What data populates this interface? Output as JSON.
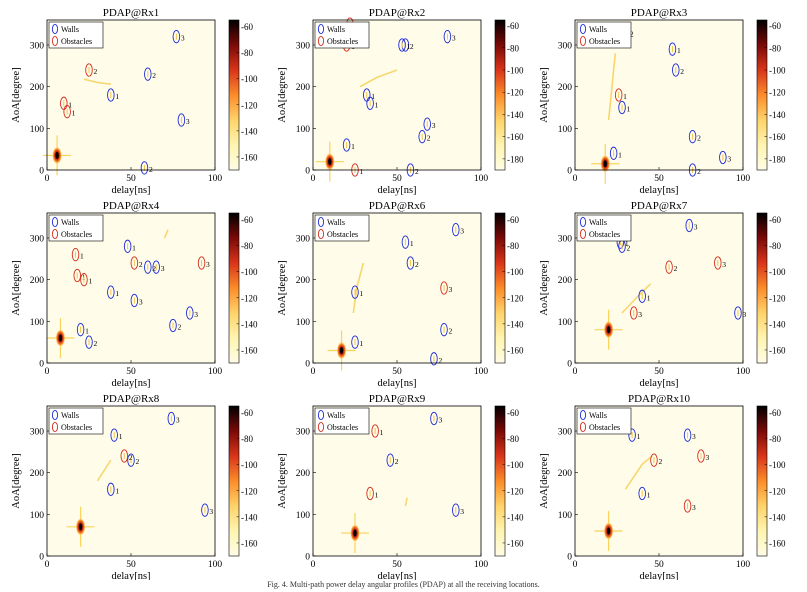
{
  "figure": {
    "caption": "Fig. 4. Multi-path power delay angular profiles (PDAP) at all the receiving locations."
  },
  "colors": {
    "walls": "#1e2bd8",
    "obstacles": "#d42c1a",
    "colormap": [
      "#fffce6",
      "#fff4b0",
      "#ffd36a",
      "#fb8c2a",
      "#d8351a",
      "#7a0a08",
      "#000000"
    ]
  },
  "chart_data": [
    {
      "type": "heatmap",
      "title": "PDAP@Rx1",
      "xlabel": "delay[ns]",
      "ylabel": "AoA[degree]",
      "xlim": [
        0,
        100
      ],
      "ylim": [
        0,
        360
      ],
      "xticks": [
        0,
        50,
        100
      ],
      "yticks": [
        0,
        100,
        200,
        300
      ],
      "colorbar": {
        "ticks": [
          -60,
          -80,
          -100,
          -120,
          -140,
          -160
        ],
        "range": [
          -170,
          -55
        ]
      },
      "legend": [
        "Walls",
        "Obstacles"
      ],
      "peaks": [
        {
          "delay": 6,
          "aoa": 35
        }
      ],
      "traces": [
        {
          "points": [
            [
              22,
              218
            ],
            [
              30,
              210
            ],
            [
              38,
              206
            ]
          ]
        }
      ],
      "walls": [
        {
          "delay": 38,
          "aoa": 180,
          "label": "1"
        },
        {
          "delay": 60,
          "aoa": 230,
          "label": "2"
        },
        {
          "delay": 77,
          "aoa": 320,
          "label": "3"
        },
        {
          "delay": 80,
          "aoa": 120,
          "label": "3"
        },
        {
          "delay": 58,
          "aoa": 5,
          "label": "2"
        }
      ],
      "obstacles": [
        {
          "delay": 10,
          "aoa": 160,
          "label": "1"
        },
        {
          "delay": 12,
          "aoa": 140,
          "label": "1"
        },
        {
          "delay": 25,
          "aoa": 240,
          "label": "2"
        }
      ]
    },
    {
      "type": "heatmap",
      "title": "PDAP@Rx2",
      "xlabel": "delay[ns]",
      "ylabel": "AoA[degree]",
      "xlim": [
        0,
        100
      ],
      "ylim": [
        0,
        360
      ],
      "xticks": [
        0,
        50,
        100
      ],
      "yticks": [
        0,
        100,
        200,
        300
      ],
      "colorbar": {
        "ticks": [
          -60,
          -80,
          -100,
          -120,
          -140,
          -160,
          -180
        ],
        "range": [
          -190,
          -55
        ]
      },
      "legend": [
        "Walls",
        "Obstacles"
      ],
      "peaks": [
        {
          "delay": 10,
          "aoa": 20
        }
      ],
      "traces": [
        {
          "points": [
            [
              28,
              200
            ],
            [
              38,
              222
            ],
            [
              50,
              240
            ]
          ]
        }
      ],
      "walls": [
        {
          "delay": 32,
          "aoa": 180,
          "label": "1"
        },
        {
          "delay": 34,
          "aoa": 160,
          "label": "1"
        },
        {
          "delay": 55,
          "aoa": 300,
          "label": "2"
        },
        {
          "delay": 53,
          "aoa": 300,
          "label": "1"
        },
        {
          "delay": 20,
          "aoa": 60,
          "label": "1"
        },
        {
          "delay": 65,
          "aoa": 80,
          "label": "2"
        },
        {
          "delay": 68,
          "aoa": 110,
          "label": "3"
        },
        {
          "delay": 80,
          "aoa": 320,
          "label": "3"
        },
        {
          "delay": 58,
          "aoa": 0,
          "label": "2"
        }
      ],
      "obstacles": [
        {
          "delay": 20,
          "aoa": 300,
          "label": "1"
        },
        {
          "delay": 22,
          "aoa": 350,
          "label": "2"
        },
        {
          "delay": 25,
          "aoa": 0,
          "label": "1"
        }
      ]
    },
    {
      "type": "heatmap",
      "title": "PDAP@Rx3",
      "xlabel": "delay[ns]",
      "ylabel": "AoA[degree]",
      "xlim": [
        0,
        100
      ],
      "ylim": [
        0,
        360
      ],
      "xticks": [
        0,
        50,
        100
      ],
      "yticks": [
        0,
        100,
        200,
        300
      ],
      "colorbar": {
        "ticks": [
          -60,
          -80,
          -100,
          -120,
          -140,
          -160,
          -180
        ],
        "range": [
          -190,
          -55
        ]
      },
      "legend": [
        "Walls",
        "Obstacles"
      ],
      "peaks": [
        {
          "delay": 18,
          "aoa": 15
        }
      ],
      "traces": [
        {
          "points": [
            [
              20,
              120
            ],
            [
              22,
              200
            ],
            [
              24,
              280
            ]
          ]
        }
      ],
      "walls": [
        {
          "delay": 28,
          "aoa": 150,
          "label": "1"
        },
        {
          "delay": 23,
          "aoa": 40,
          "label": "1"
        },
        {
          "delay": 58,
          "aoa": 290,
          "label": "1"
        },
        {
          "delay": 60,
          "aoa": 240,
          "label": "2"
        },
        {
          "delay": 70,
          "aoa": 80,
          "label": "2"
        },
        {
          "delay": 70,
          "aoa": 0,
          "label": "2"
        },
        {
          "delay": 88,
          "aoa": 30,
          "label": "3"
        }
      ],
      "obstacles": [
        {
          "delay": 26,
          "aoa": 180,
          "label": "1"
        },
        {
          "delay": 22,
          "aoa": 310,
          "label": "1"
        },
        {
          "delay": 30,
          "aoa": 330,
          "label": "2"
        }
      ]
    },
    {
      "type": "heatmap",
      "title": "PDAP@Rx4",
      "xlabel": "delay[ns]",
      "ylabel": "AoA[degree]",
      "xlim": [
        0,
        100
      ],
      "ylim": [
        0,
        360
      ],
      "xticks": [
        0,
        50,
        100
      ],
      "yticks": [
        0,
        100,
        200,
        300
      ],
      "colorbar": {
        "ticks": [
          -60,
          -80,
          -100,
          -120,
          -140,
          -160
        ],
        "range": [
          -170,
          -55
        ]
      },
      "legend": [
        "Walls",
        "Obstacles"
      ],
      "peaks": [
        {
          "delay": 8,
          "aoa": 60
        }
      ],
      "traces": [
        {
          "points": [
            [
              70,
              300
            ],
            [
              72,
              320
            ]
          ]
        }
      ],
      "walls": [
        {
          "delay": 20,
          "aoa": 80,
          "label": "1"
        },
        {
          "delay": 25,
          "aoa": 50,
          "label": "2"
        },
        {
          "delay": 38,
          "aoa": 170,
          "label": "1"
        },
        {
          "delay": 48,
          "aoa": 280,
          "label": "1"
        },
        {
          "delay": 52,
          "aoa": 150,
          "label": "3"
        },
        {
          "delay": 60,
          "aoa": 230,
          "label": "2"
        },
        {
          "delay": 65,
          "aoa": 230,
          "label": "3"
        },
        {
          "delay": 75,
          "aoa": 90,
          "label": "2"
        },
        {
          "delay": 85,
          "aoa": 120,
          "label": "3"
        }
      ],
      "obstacles": [
        {
          "delay": 17,
          "aoa": 260,
          "label": "1"
        },
        {
          "delay": 18,
          "aoa": 210,
          "label": "1"
        },
        {
          "delay": 22,
          "aoa": 200,
          "label": "1"
        },
        {
          "delay": 52,
          "aoa": 240,
          "label": "2"
        },
        {
          "delay": 92,
          "aoa": 240,
          "label": "3"
        }
      ]
    },
    {
      "type": "heatmap",
      "title": "PDAP@Rx6",
      "xlabel": "delay[ns]",
      "ylabel": "AoA[degree]",
      "xlim": [
        0,
        100
      ],
      "ylim": [
        0,
        360
      ],
      "xticks": [
        0,
        50,
        100
      ],
      "yticks": [
        0,
        100,
        200,
        300
      ],
      "colorbar": {
        "ticks": [
          -60,
          -80,
          -100,
          -120,
          -140,
          -160
        ],
        "range": [
          -170,
          -55
        ]
      },
      "legend": [
        "Walls",
        "Obstacles"
      ],
      "peaks": [
        {
          "delay": 17,
          "aoa": 30
        }
      ],
      "traces": [
        {
          "points": [
            [
              24,
              120
            ],
            [
              26,
              180
            ],
            [
              30,
              240
            ]
          ]
        }
      ],
      "walls": [
        {
          "delay": 25,
          "aoa": 50,
          "label": "1"
        },
        {
          "delay": 25,
          "aoa": 170,
          "label": "1"
        },
        {
          "delay": 55,
          "aoa": 290,
          "label": "1"
        },
        {
          "delay": 58,
          "aoa": 240,
          "label": "2"
        },
        {
          "delay": 78,
          "aoa": 80,
          "label": "2"
        },
        {
          "delay": 72,
          "aoa": 10,
          "label": "2"
        },
        {
          "delay": 85,
          "aoa": 320,
          "label": "3"
        }
      ],
      "obstacles": [
        {
          "delay": 78,
          "aoa": 180,
          "label": "3"
        }
      ]
    },
    {
      "type": "heatmap",
      "title": "PDAP@Rx7",
      "xlabel": "delay[ns]",
      "ylabel": "AoA[degree]",
      "xlim": [
        0,
        100
      ],
      "ylim": [
        0,
        360
      ],
      "xticks": [
        0,
        50,
        100
      ],
      "yticks": [
        0,
        100,
        200,
        300
      ],
      "colorbar": {
        "ticks": [
          -60,
          -80,
          -100,
          -120,
          -140,
          -160
        ],
        "range": [
          -170,
          -55
        ]
      },
      "legend": [
        "Walls",
        "Obstacles"
      ],
      "peaks": [
        {
          "delay": 20,
          "aoa": 80
        }
      ],
      "traces": [
        {
          "points": [
            [
              28,
              120
            ],
            [
              35,
              150
            ],
            [
              45,
              190
            ]
          ]
        }
      ],
      "walls": [
        {
          "delay": 27,
          "aoa": 290,
          "label": "1"
        },
        {
          "delay": 28,
          "aoa": 280,
          "label": "2"
        },
        {
          "delay": 40,
          "aoa": 160,
          "label": "1"
        },
        {
          "delay": 68,
          "aoa": 330,
          "label": "3"
        },
        {
          "delay": 97,
          "aoa": 120,
          "label": "3"
        }
      ],
      "obstacles": [
        {
          "delay": 35,
          "aoa": 120,
          "label": "3"
        },
        {
          "delay": 56,
          "aoa": 230,
          "label": "2"
        },
        {
          "delay": 85,
          "aoa": 240,
          "label": "3"
        }
      ]
    },
    {
      "type": "heatmap",
      "title": "PDAP@Rx8",
      "xlabel": "delay[ns]",
      "ylabel": "AoA[degree]",
      "xlim": [
        0,
        100
      ],
      "ylim": [
        0,
        360
      ],
      "xticks": [
        0,
        50,
        100
      ],
      "yticks": [
        0,
        100,
        200,
        300
      ],
      "colorbar": {
        "ticks": [
          -60,
          -80,
          -100,
          -120,
          -140,
          -160
        ],
        "range": [
          -170,
          -55
        ]
      },
      "legend": [
        "Walls",
        "Obstacles"
      ],
      "peaks": [
        {
          "delay": 20,
          "aoa": 70
        }
      ],
      "traces": [
        {
          "points": [
            [
              30,
              180
            ],
            [
              38,
              230
            ]
          ]
        }
      ],
      "walls": [
        {
          "delay": 38,
          "aoa": 160,
          "label": "1"
        },
        {
          "delay": 40,
          "aoa": 290,
          "label": "1"
        },
        {
          "delay": 50,
          "aoa": 230,
          "label": "2"
        },
        {
          "delay": 74,
          "aoa": 330,
          "label": "3"
        },
        {
          "delay": 94,
          "aoa": 110,
          "label": "3"
        }
      ],
      "obstacles": [
        {
          "delay": 46,
          "aoa": 240,
          "label": "2"
        }
      ]
    },
    {
      "type": "heatmap",
      "title": "PDAP@Rx9",
      "xlabel": "delay[ns]",
      "ylabel": "AoA[degree]",
      "xlim": [
        0,
        100
      ],
      "ylim": [
        0,
        360
      ],
      "xticks": [
        0,
        50,
        100
      ],
      "yticks": [
        0,
        100,
        200,
        300
      ],
      "colorbar": {
        "ticks": [
          -60,
          -80,
          -100,
          -120,
          -140,
          -160
        ],
        "range": [
          -170,
          -55
        ]
      },
      "legend": [
        "Walls",
        "Obstacles"
      ],
      "peaks": [
        {
          "delay": 25,
          "aoa": 55
        }
      ],
      "traces": [
        {
          "points": [
            [
              55,
              120
            ],
            [
              56,
              140
            ]
          ]
        }
      ],
      "walls": [
        {
          "delay": 46,
          "aoa": 230,
          "label": "2"
        },
        {
          "delay": 72,
          "aoa": 330,
          "label": "3"
        },
        {
          "delay": 85,
          "aoa": 110,
          "label": "3"
        }
      ],
      "obstacles": [
        {
          "delay": 34,
          "aoa": 150,
          "label": "1"
        },
        {
          "delay": 37,
          "aoa": 300,
          "label": "1"
        }
      ]
    },
    {
      "type": "heatmap",
      "title": "PDAP@Rx10",
      "xlabel": "delay[ns]",
      "ylabel": "AoA[degree]",
      "xlim": [
        0,
        100
      ],
      "ylim": [
        0,
        360
      ],
      "xticks": [
        0,
        50,
        100
      ],
      "yticks": [
        0,
        100,
        200,
        300
      ],
      "colorbar": {
        "ticks": [
          -60,
          -80,
          -100,
          -120,
          -140,
          -160
        ],
        "range": [
          -170,
          -55
        ]
      },
      "legend": [
        "Walls",
        "Obstacles"
      ],
      "peaks": [
        {
          "delay": 20,
          "aoa": 60
        }
      ],
      "traces": [
        {
          "points": [
            [
              30,
              160
            ],
            [
              40,
              220
            ],
            [
              46,
              240
            ]
          ]
        }
      ],
      "walls": [
        {
          "delay": 34,
          "aoa": 290,
          "label": "1"
        },
        {
          "delay": 40,
          "aoa": 150,
          "label": "1"
        },
        {
          "delay": 67,
          "aoa": 290,
          "label": "3"
        }
      ],
      "obstacles": [
        {
          "delay": 47,
          "aoa": 230,
          "label": "2"
        },
        {
          "delay": 67,
          "aoa": 120,
          "label": "3"
        },
        {
          "delay": 75,
          "aoa": 240,
          "label": "3"
        }
      ]
    }
  ]
}
